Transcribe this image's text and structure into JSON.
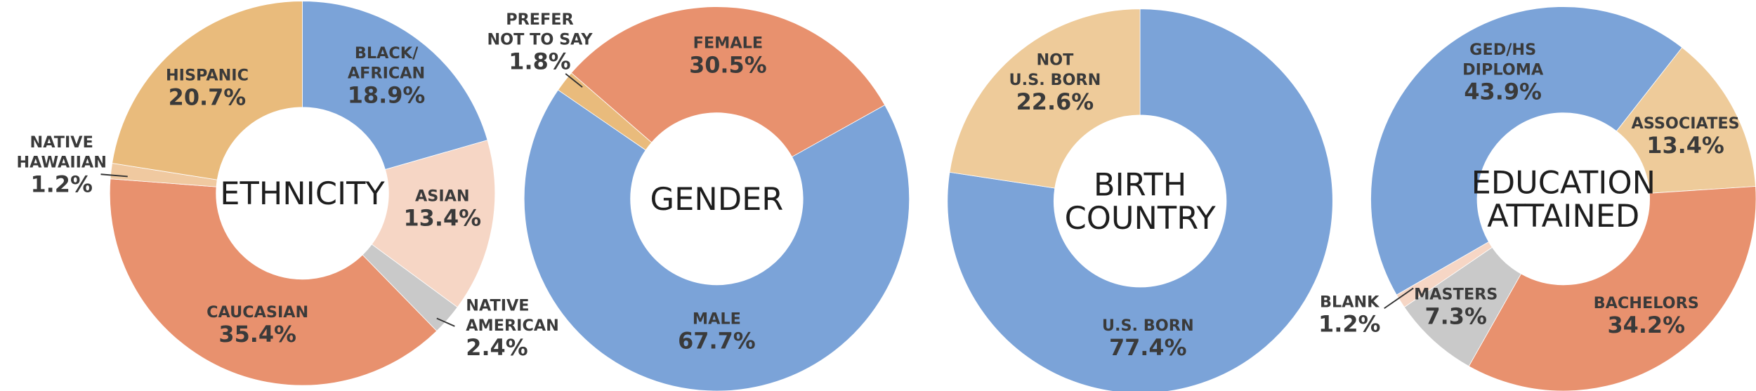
{
  "chart_data": [
    {
      "type": "donut",
      "title": "ETHNICITY",
      "categories": [
        "BLACK/\nAFRICAN",
        "ASIAN",
        "NATIVE\nAMERICAN",
        "CAUCASIAN",
        "NATIVE\nHAWAIIAN",
        "HISPANIC"
      ],
      "values": [
        18.9,
        13.4,
        2.4,
        35.4,
        1.2,
        20.7
      ],
      "value_labels": [
        "18.9%",
        "13.4%",
        "2.4%",
        "35.4%",
        "1.2%",
        "20.7%"
      ],
      "colors": [
        "#7ba3d8",
        "#f6d6c5",
        "#c9c9c9",
        "#e8916e",
        "#f0c9a0",
        "#e9bb7c"
      ]
    },
    {
      "type": "donut",
      "title": "GENDER",
      "categories": [
        "PREFER\nNOT TO SAY",
        "FEMALE",
        "MALE"
      ],
      "values": [
        1.8,
        30.5,
        67.7
      ],
      "value_labels": [
        "1.8%",
        "30.5%",
        "67.7%"
      ],
      "colors": [
        "#e9bb7c",
        "#e8916e",
        "#7ba3d8"
      ]
    },
    {
      "type": "donut",
      "title": "BIRTH\nCOUNTRY",
      "categories": [
        "U.S. BORN",
        "NOT\nU.S. BORN"
      ],
      "values": [
        77.4,
        22.6
      ],
      "value_labels": [
        "77.4%",
        "22.6%"
      ],
      "colors": [
        "#7ba3d8",
        "#eecb9a"
      ]
    },
    {
      "type": "donut",
      "title": "EDUCATION\nATTAINED",
      "categories": [
        "GED/HS\nDIPLOMA",
        "ASSOCIATES",
        "BACHELORS",
        "MASTERS",
        "BLANK"
      ],
      "values": [
        43.9,
        13.4,
        34.2,
        7.3,
        1.2
      ],
      "value_labels": [
        "43.9%",
        "13.4%",
        "34.2%",
        "7.3%",
        "1.2%"
      ],
      "colors": [
        "#7ba3d8",
        "#eecb9a",
        "#e8916e",
        "#c9c9c9",
        "#f6d6c5"
      ]
    }
  ]
}
